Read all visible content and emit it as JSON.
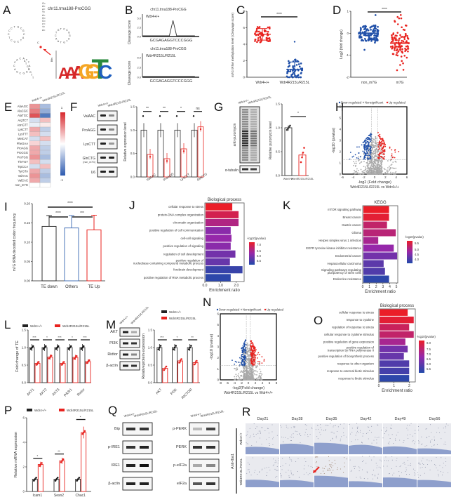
{
  "panels": {
    "A": {
      "label": "A",
      "title": "chr11.trna188-ProCGG",
      "logo_letters": [
        "A",
        "A",
        "A",
        "G",
        "G",
        "T",
        "C"
      ],
      "logo_colors": [
        "#d62728",
        "#d62728",
        "#d62728",
        "#f5a623",
        "#f5a623",
        "#2a8a3e",
        "#1f5fbf"
      ]
    },
    "B": {
      "label": "B",
      "title": "chr11.trna188-ProCGG",
      "ylabel": "Cleavage score",
      "sequence": "GCGAGAGGTCCCGGG",
      "yticks": [
        "0.0",
        "2.5",
        "5.0"
      ],
      "tracks": [
        {
          "genotype": "Wdr4+/+",
          "peak_index": 8,
          "peak_value": 4.2
        },
        {
          "genotype": "Wdr4R215L/R215L",
          "peak_index": null,
          "peak_value": 0
        }
      ]
    },
    "C": {
      "label": "C",
      "ylabel": "m7G tRNA methylation level (Cleavage score)",
      "yticks": [
        "0",
        "2",
        "4",
        "6",
        "8"
      ],
      "categories": [
        "Wdr4+/+",
        "Wdr4R215L/R215L"
      ],
      "sig": "****",
      "means": [
        5.2,
        0.95
      ],
      "sd": [
        0.7,
        0.9
      ],
      "colors": [
        "#e8231f",
        "#1f4fa8"
      ]
    },
    "D": {
      "label": "D",
      "ylabel": "Log2 (fold change)",
      "yticks": [
        "-2",
        "-1",
        "0",
        "1"
      ],
      "categories": [
        "non_m7G",
        "m7G"
      ],
      "sig": "****",
      "means": [
        0,
        -0.45
      ],
      "colors": [
        "#1f4fa8",
        "#e8231f"
      ]
    },
    "E": {
      "label": "E",
      "columns": [
        "Wdr4+/+",
        "Wdr4R215L/R215L"
      ],
      "rows": [
        "AlaAGC",
        "AlaCGC",
        "AlaTGC",
        "ArgTCT",
        "AsnGTT",
        "LysCTT",
        "LysTTT",
        "MetCAT",
        "PheGAA",
        "ProAGG",
        "ProCGG",
        "ProTGG",
        "ThrTGT",
        "TrpCCA",
        "TyrGTA",
        "ValAAC",
        "ValCAC",
        "non_m7G"
      ],
      "values": [
        [
          0.5,
          -0.4
        ],
        [
          0.6,
          -0.5
        ],
        [
          0.8,
          -0.8
        ],
        [
          -0.2,
          0.3
        ],
        [
          -0.1,
          0.1
        ],
        [
          0.4,
          -0.3
        ],
        [
          0.3,
          -0.2
        ],
        [
          -0.2,
          0.3
        ],
        [
          0.2,
          -0.2
        ],
        [
          0.4,
          -0.3
        ],
        [
          0.4,
          -0.3
        ],
        [
          0.5,
          -0.4
        ],
        [
          0.3,
          -0.2
        ],
        [
          -0.2,
          0.3
        ],
        [
          0.4,
          -0.3
        ],
        [
          0.5,
          -0.4
        ],
        [
          0.4,
          -0.3
        ],
        [
          0,
          0
        ]
      ],
      "scale": [
        "1",
        "-1"
      ]
    },
    "F": {
      "label": "F",
      "columns": [
        "Wdr4+/+",
        "Wdr4R215L/R215L"
      ],
      "blots": [
        "ValAAC",
        "ProAGG",
        "LysCTT",
        "GlnCTG (non_m7G)",
        "U6"
      ],
      "ylabel": "Relative expression level",
      "yticks": [
        "0.0",
        "0.5",
        "1.0",
        "1.5"
      ],
      "categories": [
        "ValAAC",
        "ProAGG",
        "LysCTT",
        "GlnCTG (non_m7G)"
      ],
      "wt": [
        1.0,
        1.0,
        1.0,
        1.0
      ],
      "mut": [
        0.48,
        0.39,
        0.6,
        1.07
      ],
      "sig": [
        "**",
        "**",
        "*",
        "ns"
      ]
    },
    "G": {
      "label": "G",
      "columns": [
        "Wdr4+/+",
        "Wdr4R215L/R215L"
      ],
      "blots": [
        "anti-puromycin",
        "α-tubulin"
      ],
      "ylabel": "Relative puromycin level",
      "yticks": [
        "0.0",
        "0.5",
        "1.0",
        "1.5"
      ],
      "categories": [
        "Wdr4+/+",
        "Wdr4R215L/R215L"
      ],
      "values": [
        1.0,
        0.43
      ],
      "sig": "*"
    },
    "H": {
      "label": "H",
      "legend": [
        "Down regulated",
        "Nonsignificant",
        "Up regulated"
      ],
      "xlabel": "-log2 (Fold change)",
      "subtitle": "Wdr4R215L/R215L vs Wdr4+/+",
      "ylabel": "-log10 (pvalue)",
      "xticks": [
        "-6",
        "-4",
        "-2",
        "0",
        "2",
        "4",
        "6"
      ],
      "yticks": [
        "0",
        "1",
        "2",
        "3",
        "4",
        "5",
        "6"
      ]
    },
    "I": {
      "label": "I",
      "ylabel": "m7G tRNA decoded codon frequency",
      "yticks": [
        "0.00",
        "0.05",
        "0.10",
        "0.15",
        "0.20"
      ],
      "categories": [
        "TE down",
        "Others",
        "TE Up"
      ],
      "values": [
        0.141,
        0.137,
        0.132
      ],
      "err": [
        0.028,
        0.032,
        0.038
      ],
      "colors": [
        "#333333",
        "#4a74b8",
        "#e8231f"
      ],
      "sig": [
        "****",
        "****",
        "***"
      ]
    },
    "J": {
      "label": "J",
      "title": "Biological process",
      "xlabel": "Enrichment ratio",
      "xticks": [
        "0.0",
        "1.0",
        "2.0"
      ],
      "legend_title": "-log10(pvalue)",
      "legend_ticks": [
        "7.0",
        "6.5",
        "6.0",
        "5.5"
      ],
      "terms": [
        "cellular response to stress",
        "protein-DNA complex organization",
        "chromatin organization",
        "positive regulation of cell communication",
        "cell-cell signaling",
        "positive regulation of signaling",
        "regulation of cell development",
        "positive regulation of nucleobase-containing compound metabolic process",
        "forebrain development",
        "positive regulation of RNA metabolic process"
      ],
      "values": [
        1.7,
        2.1,
        2.1,
        1.6,
        1.65,
        1.6,
        1.9,
        1.55,
        2.35,
        1.6
      ],
      "color_t": [
        1.0,
        0.85,
        0.65,
        0.45,
        0.5,
        0.45,
        0.35,
        0.3,
        0.1,
        0.05
      ]
    },
    "K": {
      "label": "K",
      "title": "KEGG",
      "xlabel": "Enrichment ratio",
      "xticks": [
        "0",
        "1",
        "2",
        "3",
        "4",
        "5"
      ],
      "legend_title": "-log10(pvalue)",
      "legend_ticks": [
        "5.5",
        "5.0",
        "4.5",
        "4.0"
      ],
      "terms": [
        "mTOR signaling pathway",
        "Breast cancer",
        "Gastric cancer",
        "Glioma",
        "Herpes simplex virus 1 infection",
        "EGFR tyrosine kinase inhibitor resistance",
        "Endometrial cancer",
        "Hepatocellular carcinoma",
        "Signaling pathways regulating pluripotency of stem cells",
        "Endocrine resistance"
      ],
      "values": [
        3.8,
        3.8,
        3.5,
        4.8,
        2.2,
        4.5,
        5.0,
        3.0,
        3.2,
        3.8
      ],
      "color_t": [
        1.0,
        0.95,
        0.75,
        0.7,
        0.6,
        0.5,
        0.35,
        0.25,
        0.2,
        0.05
      ]
    },
    "L": {
      "label": "L",
      "legend": [
        "Wdr4+/+",
        "Wdr4R215L/R215L"
      ],
      "ylabel": "Fold change of TE",
      "yticks": [
        "0.0",
        "0.5",
        "1.0",
        "1.5"
      ],
      "categories": [
        "AKT1",
        "AKT2",
        "AKT3",
        "Pik3r1",
        "Rictor"
      ],
      "wt": [
        1.0,
        1.0,
        1.0,
        1.0,
        1.0
      ],
      "mut": [
        0.55,
        0.73,
        0.55,
        0.72,
        0.6
      ],
      "sig": [
        "***",
        "*",
        "***",
        "*",
        "***"
      ]
    },
    "M": {
      "label": "M",
      "columns": [
        "Wdr4+/+",
        "Wdr4R215L/R215L"
      ],
      "blots": [
        "AKT",
        "PI3K",
        "Ridtor",
        "β-actin"
      ],
      "legend": [
        "Wdr4+/+",
        "Wdr4R215L/R215L"
      ],
      "ylabel": "Relativeprotein expression",
      "yticks": [
        "0.0",
        "0.5",
        "1.0",
        "1.5"
      ],
      "categories": [
        "AKT",
        "PI3K",
        "RICTOR"
      ],
      "wt": [
        1.0,
        1.0,
        1.0
      ],
      "mut": [
        0.41,
        0.62,
        0.57
      ],
      "sig": [
        "***",
        "*",
        "**"
      ]
    },
    "N": {
      "label": "N",
      "legend": [
        "Down regulated",
        "Nonsignificant",
        "Up regulated"
      ],
      "xlabel": "-log2(Fold change)",
      "subtitle": "Wdr4R215L/R215L vs Wdr4+/+",
      "ylabel": "-log10 (pvalue)",
      "xticks": [
        "-8",
        "-6",
        "-4",
        "-2",
        "0",
        "2",
        "4",
        "6",
        "8"
      ],
      "yticks": [
        "0",
        "1",
        "2",
        "3",
        "4",
        "5",
        "6"
      ]
    },
    "O": {
      "label": "O",
      "title": "Biological process",
      "xlabel": "Enrichment ratio",
      "xticks": [
        "0",
        "1",
        "2"
      ],
      "legend_title": "-log10(pvalue)",
      "legend_ticks": [
        "8.0",
        "7.5",
        "7.0",
        "6.5",
        "6.0",
        "5.5"
      ],
      "terms": [
        "cellular response to stress",
        "response to cytokine",
        "regulation of response to stress",
        "cellular response to cytokine stimulus",
        "positive regulation of gene expression",
        "positive regulation of transcription by RNA polymerase II",
        "positive regulation of biosynthetic process",
        "response to other organism",
        "response to external biotic stimulus",
        "response to biotic stimulus"
      ],
      "values": [
        1.85,
        2.25,
        1.95,
        2.25,
        1.7,
        1.85,
        1.6,
        1.95,
        1.95,
        1.95
      ],
      "color_t": [
        1.0,
        0.95,
        0.8,
        0.75,
        0.6,
        0.35,
        0.3,
        0.2,
        0.15,
        0.05
      ]
    },
    "P": {
      "label": "P",
      "legend": [
        "Wdr4+/+",
        "Wdr4R215L/R215L"
      ],
      "ylabel": "Relative mRNA expression",
      "yticks": [
        "0",
        "2",
        "4",
        "6"
      ],
      "categories": [
        "Icam1",
        "Sesn2",
        "Chac1"
      ],
      "wt": [
        1.0,
        1.0,
        1.0
      ],
      "mut": [
        2.2,
        2.5,
        4.8
      ],
      "sig": [
        "*",
        "**",
        "*"
      ]
    },
    "Q": {
      "label": "Q",
      "columns": [
        "Wdr4+/+",
        "Wdr4R215L/R215L"
      ],
      "left_blots": [
        "Bip",
        "p-IRE1",
        "IRE1",
        "β-actin"
      ],
      "right_blots": [
        "p-PERK",
        "PERK",
        "p-eIF2a",
        "eIF2a"
      ]
    },
    "R": {
      "label": "R",
      "days": [
        "Day21",
        "Day28",
        "Day35",
        "Day42",
        "Day49",
        "Day56"
      ],
      "row_group": "Anti-Iba1",
      "rows": [
        "Wdr4+/+",
        "Wdr4R215L/R215L"
      ]
    }
  },
  "chart_data": [
    {
      "panel": "B",
      "type": "line",
      "title": "chr11.trna188-ProCGG",
      "xlabel": "",
      "ylabel": "Cleavage score",
      "x": [
        "G",
        "C",
        "G",
        "A",
        "G",
        "A",
        "G",
        "G",
        "T",
        "C",
        "C",
        "C",
        "G",
        "G",
        "G"
      ],
      "series": [
        {
          "name": "Wdr4+/+",
          "values": [
            0,
            0,
            0,
            0,
            0,
            0,
            0,
            0,
            4.2,
            0,
            0,
            0,
            0,
            0,
            0
          ]
        },
        {
          "name": "Wdr4R215L/R215L",
          "values": [
            0,
            0,
            0,
            0,
            0,
            0,
            0,
            0,
            0,
            0,
            0,
            0,
            0,
            0,
            0
          ]
        }
      ],
      "ylim": [
        0,
        6
      ]
    },
    {
      "panel": "C",
      "type": "scatter",
      "categories": [
        "Wdr4+/+",
        "Wdr4R215L/R215L"
      ],
      "ylabel": "m7G tRNA methylation level (Cleavage score)",
      "ylim": [
        0,
        8
      ],
      "means": [
        5.2,
        0.95
      ],
      "sd": [
        0.7,
        0.9
      ]
    },
    {
      "panel": "D",
      "type": "scatter",
      "categories": [
        "non_m7G",
        "m7G"
      ],
      "ylabel": "Log2 (fold change)",
      "ylim": [
        -2,
        1
      ],
      "medians": [
        0,
        -0.45
      ]
    },
    {
      "panel": "E",
      "type": "heatmap",
      "rows": [
        "AlaAGC",
        "AlaCGC",
        "AlaTGC",
        "ArgTCT",
        "AsnGTT",
        "LysCTT",
        "LysTTT",
        "MetCAT",
        "PheGAA",
        "ProAGG",
        "ProCGG",
        "ProTGG",
        "ThrTGT",
        "TrpCCA",
        "TyrGTA",
        "ValAAC",
        "ValCAC",
        "non_m7G"
      ],
      "columns": [
        "Wdr4+/+",
        "Wdr4R215L/R215L"
      ],
      "range": [
        -1,
        1
      ]
    },
    {
      "panel": "F",
      "type": "bar",
      "categories": [
        "ValAAC",
        "ProAGG",
        "LysCTT",
        "GlnCTG (non_m7G)"
      ],
      "series": [
        {
          "name": "Wdr4+/+",
          "values": [
            1.0,
            1.0,
            1.0,
            1.0
          ]
        },
        {
          "name": "Wdr4R215L/R215L",
          "values": [
            0.48,
            0.39,
            0.6,
            1.07
          ]
        }
      ],
      "ylabel": "Relative expression level",
      "ylim": [
        0,
        1.5
      ]
    },
    {
      "panel": "G",
      "type": "bar",
      "categories": [
        "Wdr4+/+",
        "Wdr4R215L/R215L"
      ],
      "values": [
        1.0,
        0.43
      ],
      "ylabel": "Relative puromycin level",
      "ylim": [
        0,
        1.5
      ]
    },
    {
      "panel": "H",
      "type": "scatter",
      "xlabel": "-log2 (Fold change)",
      "ylabel": "-log10 (pvalue)",
      "xlim": [
        -6,
        6
      ],
      "ylim": [
        0,
        6
      ],
      "legend": [
        "Down regulated",
        "Nonsignificant",
        "Up regulated"
      ]
    },
    {
      "panel": "I",
      "type": "bar",
      "categories": [
        "TE down",
        "Others",
        "TE Up"
      ],
      "values": [
        0.141,
        0.137,
        0.132
      ],
      "ylabel": "m7G tRNA decoded codon frequency",
      "ylim": [
        0,
        0.2
      ]
    },
    {
      "panel": "J",
      "type": "bar",
      "title": "Biological process",
      "xlabel": "Enrichment ratio",
      "categories": [
        "cellular response to stress",
        "protein-DNA complex organization",
        "chromatin organization",
        "positive regulation of cell communication",
        "cell-cell signaling",
        "positive regulation of signaling",
        "regulation of cell development",
        "positive regulation of nucleobase-containing compound metabolic process",
        "forebrain development",
        "positive regulation of RNA metabolic process"
      ],
      "values": [
        1.7,
        2.1,
        2.1,
        1.6,
        1.65,
        1.6,
        1.9,
        1.55,
        2.35,
        1.6
      ],
      "xlim": [
        0,
        2.5
      ]
    },
    {
      "panel": "K",
      "type": "bar",
      "title": "KEGG",
      "xlabel": "Enrichment ratio",
      "categories": [
        "mTOR signaling pathway",
        "Breast cancer",
        "Gastric cancer",
        "Glioma",
        "Herpes simplex virus 1 infection",
        "EGFR tyrosine kinase inhibitor resistance",
        "Endometrial cancer",
        "Hepatocellular carcinoma",
        "Signaling pathways regulating pluripotency of stem cells",
        "Endocrine resistance"
      ],
      "values": [
        3.8,
        3.8,
        3.5,
        4.8,
        2.2,
        4.5,
        5.0,
        3.0,
        3.2,
        3.8
      ],
      "xlim": [
        0,
        5.2
      ]
    },
    {
      "panel": "L",
      "type": "bar",
      "categories": [
        "AKT1",
        "AKT2",
        "AKT3",
        "Pik3r1",
        "Rictor"
      ],
      "series": [
        {
          "name": "Wdr4+/+",
          "values": [
            1,
            1,
            1,
            1,
            1
          ]
        },
        {
          "name": "Wdr4R215L/R215L",
          "values": [
            0.55,
            0.73,
            0.55,
            0.72,
            0.6
          ]
        }
      ],
      "ylabel": "Fold change of TE",
      "ylim": [
        0,
        1.5
      ]
    },
    {
      "panel": "M",
      "type": "bar",
      "categories": [
        "AKT",
        "PI3K",
        "RICTOR"
      ],
      "series": [
        {
          "name": "Wdr4+/+",
          "values": [
            1,
            1,
            1
          ]
        },
        {
          "name": "Wdr4R215L/R215L",
          "values": [
            0.41,
            0.62,
            0.57
          ]
        }
      ],
      "ylabel": "Relativeprotein expression",
      "ylim": [
        0,
        1.5
      ]
    },
    {
      "panel": "N",
      "type": "scatter",
      "xlabel": "-log2(Fold change)",
      "ylabel": "-log10 (pvalue)",
      "xlim": [
        -8,
        8
      ],
      "ylim": [
        0,
        6
      ],
      "legend": [
        "Down regulated",
        "Nonsignificant",
        "Up regulated"
      ]
    },
    {
      "panel": "O",
      "type": "bar",
      "title": "Biological process",
      "xlabel": "Enrichment ratio",
      "categories": [
        "cellular response to stress",
        "response to cytokine",
        "regulation of response to stress",
        "cellular response to cytokine stimulus",
        "positive regulation of gene expression",
        "positive regulation of transcription by RNA polymerase II",
        "positive regulation of biosynthetic process",
        "response to other organism",
        "response to external biotic stimulus",
        "response to biotic stimulus"
      ],
      "values": [
        1.85,
        2.25,
        1.95,
        2.25,
        1.7,
        1.85,
        1.6,
        1.95,
        1.95,
        1.95
      ],
      "xlim": [
        0,
        2.4
      ]
    },
    {
      "panel": "P",
      "type": "bar",
      "categories": [
        "Icam1",
        "Sesn2",
        "Chac1"
      ],
      "series": [
        {
          "name": "Wdr4+/+",
          "values": [
            1,
            1,
            1
          ]
        },
        {
          "name": "Wdr4R215L/R215L",
          "values": [
            2.2,
            2.5,
            4.8
          ]
        }
      ],
      "ylabel": "Relative mRNA expression",
      "ylim": [
        0,
        6
      ]
    }
  ]
}
